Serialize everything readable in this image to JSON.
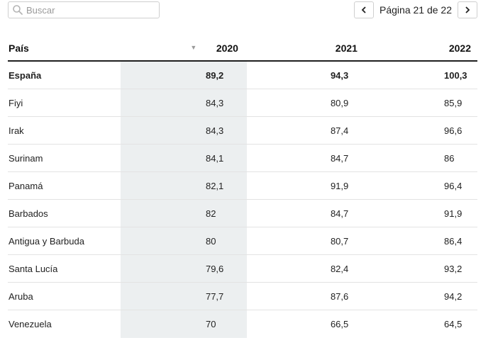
{
  "search": {
    "placeholder": "Buscar"
  },
  "pagination": {
    "label": "Página 21 de 22"
  },
  "table": {
    "headers": {
      "country": "País",
      "y2020": "2020",
      "y2021": "2021",
      "y2022": "2022"
    },
    "rows": [
      {
        "country": "España",
        "y2020": "89,2",
        "y2021": "94,3",
        "y2022": "100,3",
        "bold": true
      },
      {
        "country": "Fiyi",
        "y2020": "84,3",
        "y2021": "80,9",
        "y2022": "85,9"
      },
      {
        "country": "Irak",
        "y2020": "84,3",
        "y2021": "87,4",
        "y2022": "96,6"
      },
      {
        "country": "Surinam",
        "y2020": "84,1",
        "y2021": "84,7",
        "y2022": "86"
      },
      {
        "country": "Panamá",
        "y2020": "82,1",
        "y2021": "91,9",
        "y2022": "96,4"
      },
      {
        "country": "Barbados",
        "y2020": "82",
        "y2021": "84,7",
        "y2022": "91,9"
      },
      {
        "country": "Antigua y Barbuda",
        "y2020": "80",
        "y2021": "80,7",
        "y2022": "86,4"
      },
      {
        "country": "Santa Lucía",
        "y2020": "79,6",
        "y2021": "82,4",
        "y2022": "93,2"
      },
      {
        "country": "Aruba",
        "y2020": "77,7",
        "y2021": "87,6",
        "y2022": "94,2"
      },
      {
        "country": "Venezuela",
        "y2020": "70",
        "y2021": "66,5",
        "y2022": "64,5"
      }
    ]
  }
}
